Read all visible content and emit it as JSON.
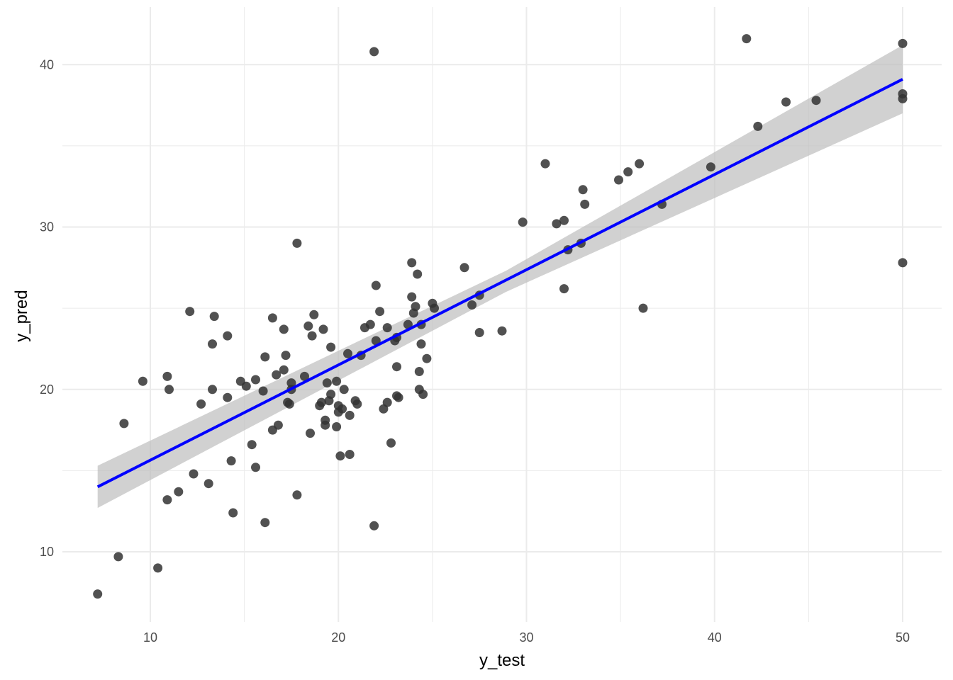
{
  "chart_data": {
    "type": "scatter",
    "title": "",
    "xlabel": "y_test",
    "ylabel": "y_pred",
    "xlim": [
      4.9,
      51.3
    ],
    "ylim": [
      5.8,
      43.2
    ],
    "x_ticks": [
      10,
      20,
      30,
      40,
      50
    ],
    "y_ticks": [
      10,
      20,
      30,
      40
    ],
    "x_minor_ticks": [
      15,
      25,
      35,
      45
    ],
    "y_minor_ticks": [
      15,
      25,
      35
    ],
    "grid": true,
    "legend": "none",
    "colors": {
      "points": "#333333",
      "fit_line": "#0000ff",
      "confidence_band": "#bdbdbd",
      "grid": "#ebebeb"
    },
    "series": [
      {
        "type": "scatter",
        "x": [
          7.2,
          8.3,
          8.6,
          9.6,
          10.4,
          10.9,
          10.9,
          11.0,
          11.5,
          12.1,
          12.3,
          12.7,
          13.1,
          13.3,
          13.3,
          13.4,
          14.1,
          14.1,
          14.3,
          14.4,
          14.8,
          15.1,
          15.4,
          15.6,
          15.6,
          16.0,
          16.1,
          16.1,
          16.5,
          16.5,
          16.7,
          16.8,
          17.1,
          17.1,
          17.2,
          17.3,
          17.4,
          17.5,
          17.5,
          17.8,
          17.8,
          18.2,
          18.4,
          18.5,
          18.6,
          18.7,
          19.0,
          19.1,
          19.2,
          19.3,
          19.3,
          19.4,
          19.5,
          19.6,
          19.6,
          19.9,
          19.9,
          20.0,
          20.0,
          20.1,
          20.2,
          20.3,
          20.5,
          20.6,
          20.6,
          20.9,
          21.0,
          21.2,
          21.4,
          21.7,
          21.9,
          21.9,
          22.0,
          22.0,
          22.2,
          22.4,
          22.6,
          22.6,
          22.8,
          23.0,
          23.1,
          23.1,
          23.1,
          23.2,
          23.7,
          23.9,
          23.9,
          24.0,
          24.1,
          24.2,
          24.3,
          24.3,
          24.4,
          24.4,
          24.5,
          24.7,
          25.0,
          25.1,
          26.7,
          27.1,
          27.5,
          27.5,
          28.7,
          29.8,
          31.0,
          31.6,
          32.0,
          32.0,
          32.2,
          32.9,
          33.0,
          33.1,
          34.9,
          35.4,
          36.0,
          36.2,
          37.2,
          39.8,
          41.7,
          42.3,
          43.8,
          45.4,
          50.0,
          50.0,
          50.0,
          50.0
        ],
        "y": [
          7.4,
          9.7,
          17.9,
          20.5,
          9.0,
          20.8,
          13.2,
          20.0,
          13.7,
          24.8,
          14.8,
          19.1,
          14.2,
          22.8,
          20.0,
          24.5,
          19.5,
          23.3,
          15.6,
          12.4,
          20.5,
          20.2,
          16.6,
          20.6,
          15.2,
          19.9,
          22.0,
          11.8,
          24.4,
          17.5,
          20.9,
          17.8,
          23.7,
          21.2,
          22.1,
          19.2,
          19.1,
          20.0,
          20.4,
          13.5,
          29.0,
          20.8,
          23.9,
          17.3,
          23.3,
          24.6,
          19.0,
          19.2,
          23.7,
          17.8,
          18.1,
          20.4,
          19.3,
          19.7,
          22.6,
          20.5,
          17.7,
          19.0,
          18.6,
          15.9,
          18.8,
          20.0,
          22.2,
          18.4,
          16.0,
          19.3,
          19.1,
          22.1,
          23.8,
          24.0,
          40.8,
          11.6,
          23.0,
          26.4,
          24.8,
          18.8,
          19.2,
          23.8,
          16.7,
          23.0,
          23.2,
          19.6,
          21.4,
          19.5,
          24.0,
          25.7,
          27.8,
          24.7,
          25.1,
          27.1,
          20.0,
          21.1,
          24.0,
          22.8,
          19.7,
          21.9,
          25.3,
          25.0,
          27.5,
          25.2,
          25.8,
          23.5,
          23.6,
          30.3,
          33.9,
          30.2,
          30.4,
          26.2,
          28.6,
          29.0,
          32.3,
          31.4,
          32.9,
          33.4,
          33.9,
          25.0,
          31.4,
          33.7,
          41.6,
          36.2,
          37.7,
          37.8,
          41.3,
          38.2,
          37.9,
          27.8
        ]
      },
      {
        "type": "line",
        "x": [
          7.2,
          50.0
        ],
        "y": [
          14.0,
          39.1
        ]
      },
      {
        "type": "area",
        "x": [
          7.2,
          28.9,
          50.0
        ],
        "upper": [
          15.3,
          27.3,
          41.2
        ],
        "lower": [
          12.7,
          26.0,
          37.0
        ]
      }
    ]
  }
}
